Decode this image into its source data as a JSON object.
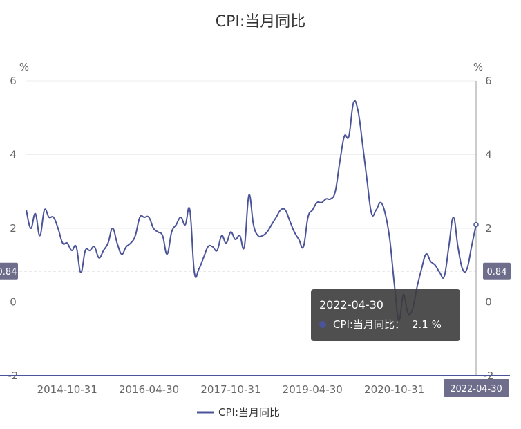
{
  "chart_data": {
    "type": "line",
    "title": "CPI:当月同比",
    "y_unit_left": "%",
    "y_unit_right": "%",
    "ylim": [
      -2,
      6
    ],
    "y_ticks": [
      "6",
      "4",
      "2",
      "0",
      "-2"
    ],
    "x_tick_labels": [
      "2014-10-31",
      "2016-04-30",
      "2017-10-31",
      "2019-04-30",
      "2020-10-31"
    ],
    "x_range": [
      "2014-01",
      "2022-04"
    ],
    "reference_line": {
      "value": 0.84,
      "label": "0.84"
    },
    "x_axis_pointer_label": "2022-04-30",
    "grid": true,
    "legend_position": "bottom-center",
    "colors": {
      "line": "#4b5499",
      "badge": "#6e6e8c",
      "tooltip_bg": "#3c3c3c",
      "grid": "#eeeeee",
      "axis": "#999999"
    },
    "series": [
      {
        "name": "CPI:当月同比",
        "dates": [
          "2014-01",
          "2014-02",
          "2014-03",
          "2014-04",
          "2014-05",
          "2014-06",
          "2014-07",
          "2014-08",
          "2014-09",
          "2014-10",
          "2014-11",
          "2014-12",
          "2015-01",
          "2015-02",
          "2015-03",
          "2015-04",
          "2015-05",
          "2015-06",
          "2015-07",
          "2015-08",
          "2015-09",
          "2015-10",
          "2015-11",
          "2015-12",
          "2016-01",
          "2016-02",
          "2016-03",
          "2016-04",
          "2016-05",
          "2016-06",
          "2016-07",
          "2016-08",
          "2016-09",
          "2016-10",
          "2016-11",
          "2016-12",
          "2017-01",
          "2017-02",
          "2017-03",
          "2017-04",
          "2017-05",
          "2017-06",
          "2017-07",
          "2017-08",
          "2017-09",
          "2017-10",
          "2017-11",
          "2017-12",
          "2018-01",
          "2018-02",
          "2018-03",
          "2018-04",
          "2018-05",
          "2018-06",
          "2018-07",
          "2018-08",
          "2018-09",
          "2018-10",
          "2018-11",
          "2018-12",
          "2019-01",
          "2019-02",
          "2019-03",
          "2019-04",
          "2019-05",
          "2019-06",
          "2019-07",
          "2019-08",
          "2019-09",
          "2019-10",
          "2019-11",
          "2019-12",
          "2020-01",
          "2020-02",
          "2020-03",
          "2020-04",
          "2020-05",
          "2020-06",
          "2020-07",
          "2020-08",
          "2020-09",
          "2020-10",
          "2020-11",
          "2020-12",
          "2021-01",
          "2021-02",
          "2021-03",
          "2021-04",
          "2021-05",
          "2021-06",
          "2021-07",
          "2021-08",
          "2021-09",
          "2021-10",
          "2021-11",
          "2021-12",
          "2022-01",
          "2022-02",
          "2022-03",
          "2022-04"
        ],
        "values": [
          2.5,
          2.0,
          2.4,
          1.8,
          2.5,
          2.3,
          2.3,
          2.0,
          1.6,
          1.6,
          1.4,
          1.5,
          0.8,
          1.4,
          1.4,
          1.5,
          1.2,
          1.4,
          1.6,
          2.0,
          1.6,
          1.3,
          1.5,
          1.6,
          1.8,
          2.3,
          2.3,
          2.3,
          2.0,
          1.9,
          1.8,
          1.3,
          1.9,
          2.1,
          2.3,
          2.1,
          2.5,
          0.8,
          0.9,
          1.2,
          1.5,
          1.5,
          1.4,
          1.8,
          1.6,
          1.9,
          1.7,
          1.8,
          1.5,
          2.9,
          2.1,
          1.8,
          1.8,
          1.9,
          2.1,
          2.3,
          2.5,
          2.5,
          2.2,
          1.9,
          1.7,
          1.5,
          2.3,
          2.5,
          2.7,
          2.7,
          2.8,
          2.8,
          3.0,
          3.8,
          4.5,
          4.5,
          5.4,
          5.2,
          4.3,
          3.3,
          2.4,
          2.5,
          2.7,
          2.4,
          1.7,
          0.5,
          -0.5,
          0.2,
          -0.3,
          -0.2,
          0.4,
          0.9,
          1.3,
          1.1,
          1.0,
          0.8,
          0.7,
          1.5,
          2.3,
          1.5,
          0.9,
          0.9,
          1.5,
          2.1
        ]
      }
    ]
  },
  "legend": {
    "label": "CPI:当月同比"
  },
  "tooltip": {
    "date": "2022-04-30",
    "series_label": "CPI:当月同比：",
    "value": "2.1 %"
  }
}
